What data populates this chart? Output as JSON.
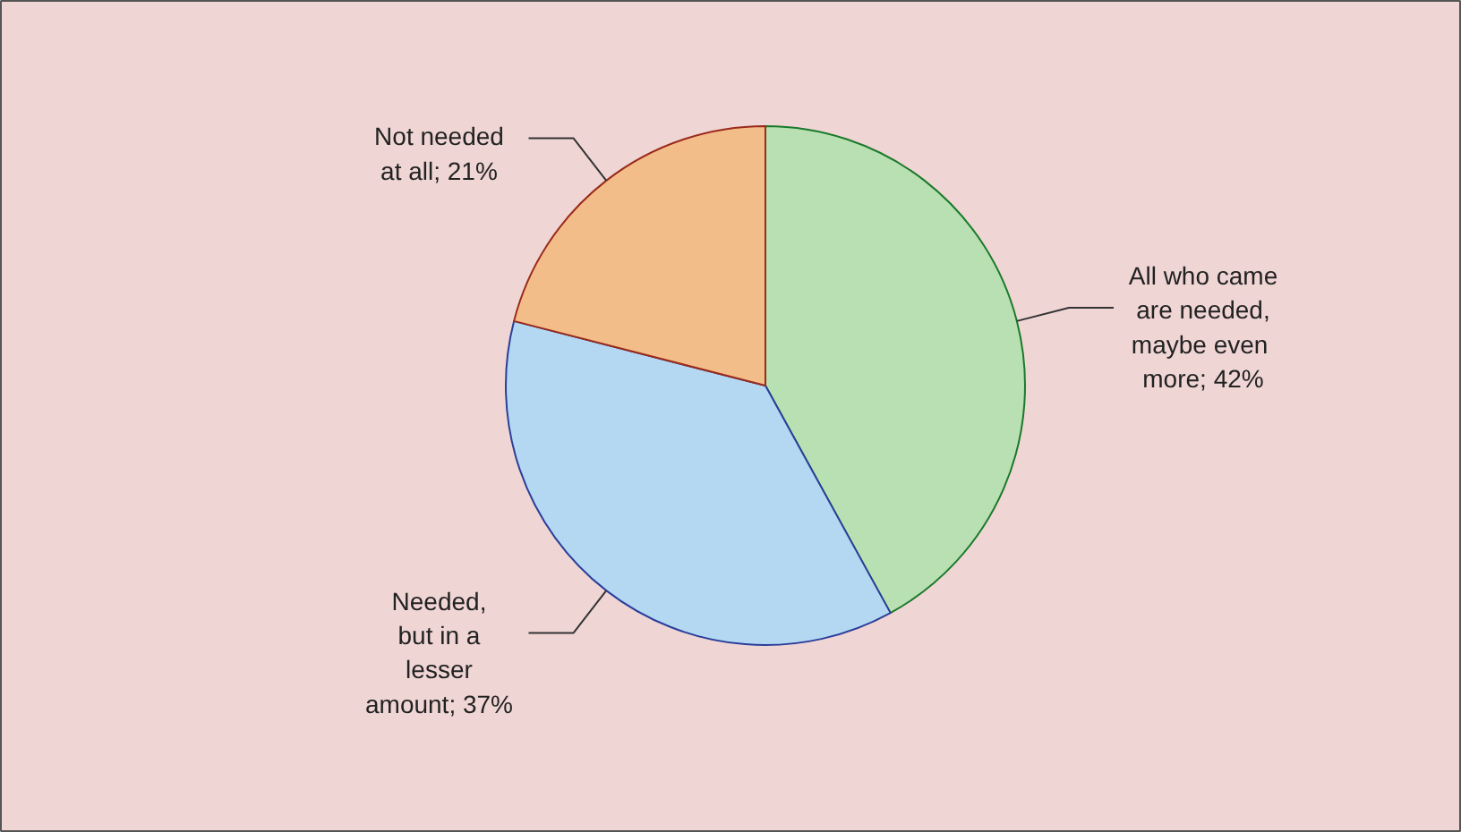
{
  "chart_data": {
    "type": "pie",
    "categories": [
      "All who came\nare needed,\n maybe even\nmore",
      "Needed,\nbut in a\nlesser\namount",
      "Not needed\nat all"
    ],
    "values": [
      42,
      37,
      21
    ],
    "value_labels": [
      "42%",
      "37%",
      "21%"
    ],
    "colors": [
      "#b9e0b3",
      "#b5d8f2",
      "#f3bd8a"
    ]
  }
}
